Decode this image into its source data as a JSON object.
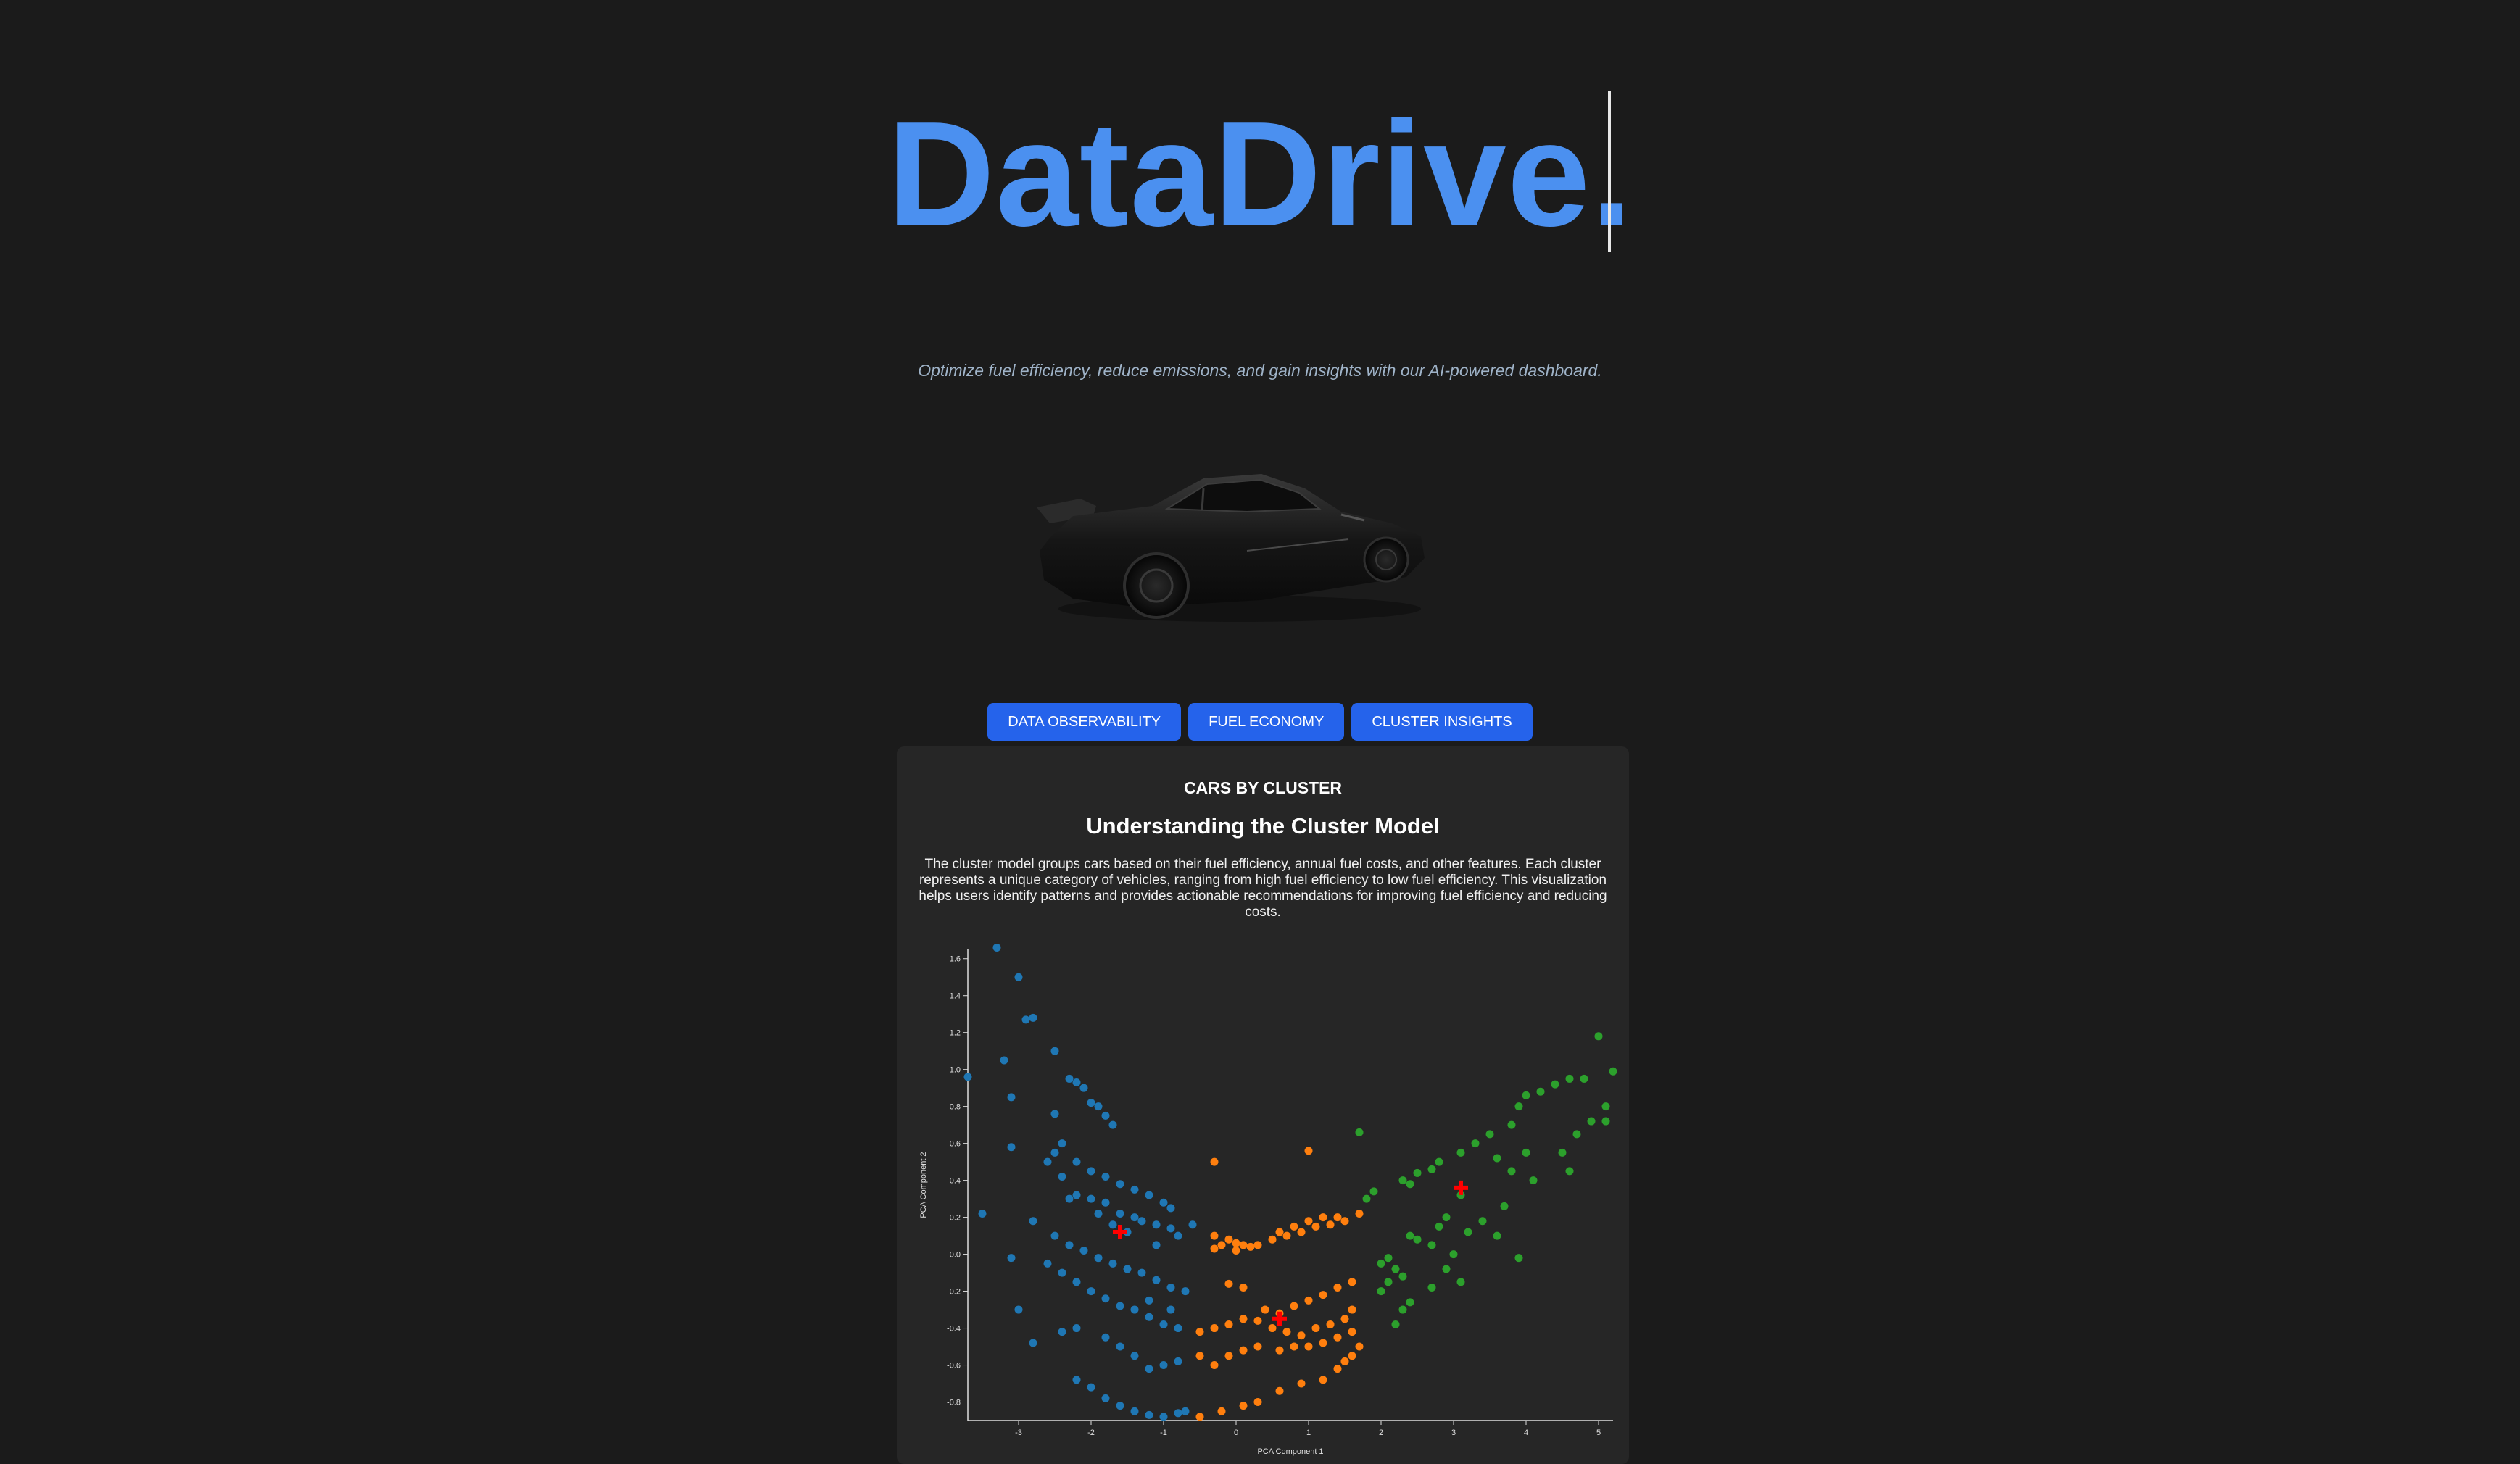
{
  "hero": {
    "title": "DataDrive.",
    "tagline": "Optimize fuel efficiency, reduce emissions, and gain insights with our AI-powered dashboard."
  },
  "nav": {
    "buttons": [
      {
        "label": "DATA OBSERVABILITY"
      },
      {
        "label": "FUEL ECONOMY"
      },
      {
        "label": "CLUSTER INSIGHTS"
      }
    ]
  },
  "panel": {
    "header": "CARS BY CLUSTER",
    "title": "Understanding the Cluster Model",
    "description": "The cluster model groups cars based on their fuel efficiency, annual fuel costs, and other features. Each cluster represents a unique category of vehicles, ranging from high fuel efficiency to low fuel efficiency. This visualization helps users identify patterns and provides actionable recommendations for improving fuel efficiency and reducing costs."
  },
  "colors": {
    "accent": "#4b90f0",
    "button": "#2563eb",
    "cluster_0": "#1f77b4",
    "cluster_1": "#ff7f0e",
    "cluster_2": "#2ca02c",
    "centroid": "#ff0000"
  },
  "chart_data": {
    "type": "scatter",
    "xlabel": "PCA Component 1",
    "ylabel": "PCA Component 2",
    "xlim": [
      -3.7,
      5.2
    ],
    "ylim": [
      -0.9,
      1.65
    ],
    "xticks": [
      -3,
      -2,
      -1,
      0,
      1,
      2,
      3,
      4,
      5
    ],
    "yticks": [
      -0.8,
      -0.6,
      -0.4,
      -0.2,
      0.0,
      0.2,
      0.4,
      0.6,
      0.8,
      1.0,
      1.2,
      1.4,
      1.6
    ],
    "series": [
      {
        "color": "#1f77b4",
        "points": [
          [
            -3.7,
            0.96
          ],
          [
            -3.3,
            1.66
          ],
          [
            -3.2,
            1.05
          ],
          [
            -3.0,
            1.5
          ],
          [
            -2.9,
            1.27
          ],
          [
            -2.8,
            1.28
          ],
          [
            -2.5,
            1.1
          ],
          [
            -2.3,
            0.95
          ],
          [
            -2.2,
            0.93
          ],
          [
            -2.1,
            0.9
          ],
          [
            -2.0,
            0.82
          ],
          [
            -1.9,
            0.8
          ],
          [
            -1.8,
            0.75
          ],
          [
            -1.7,
            0.7
          ],
          [
            -3.1,
            0.85
          ],
          [
            -2.5,
            0.76
          ],
          [
            -3.1,
            0.58
          ],
          [
            -2.5,
            0.55
          ],
          [
            -2.4,
            0.6
          ],
          [
            -2.2,
            0.5
          ],
          [
            -2.0,
            0.45
          ],
          [
            -1.8,
            0.42
          ],
          [
            -1.6,
            0.38
          ],
          [
            -1.4,
            0.35
          ],
          [
            -1.2,
            0.32
          ],
          [
            -1.0,
            0.28
          ],
          [
            -0.9,
            0.25
          ],
          [
            -2.6,
            0.5
          ],
          [
            -2.4,
            0.42
          ],
          [
            -2.2,
            0.32
          ],
          [
            -2.0,
            0.3
          ],
          [
            -1.8,
            0.28
          ],
          [
            -1.6,
            0.22
          ],
          [
            -1.4,
            0.2
          ],
          [
            -1.3,
            0.18
          ],
          [
            -1.1,
            0.16
          ],
          [
            -0.9,
            0.14
          ],
          [
            -0.8,
            0.1
          ],
          [
            -0.6,
            0.16
          ],
          [
            -3.5,
            0.22
          ],
          [
            -2.8,
            0.18
          ],
          [
            -2.5,
            0.1
          ],
          [
            -2.3,
            0.05
          ],
          [
            -2.1,
            0.02
          ],
          [
            -1.9,
            -0.02
          ],
          [
            -1.7,
            -0.05
          ],
          [
            -1.5,
            -0.08
          ],
          [
            -1.3,
            -0.1
          ],
          [
            -1.1,
            -0.14
          ],
          [
            -0.9,
            -0.18
          ],
          [
            -0.7,
            -0.2
          ],
          [
            -3.1,
            -0.02
          ],
          [
            -2.6,
            -0.05
          ],
          [
            -2.4,
            -0.1
          ],
          [
            -2.2,
            -0.15
          ],
          [
            -2.0,
            -0.2
          ],
          [
            -1.8,
            -0.24
          ],
          [
            -1.6,
            -0.28
          ],
          [
            -1.4,
            -0.3
          ],
          [
            -1.2,
            -0.34
          ],
          [
            -1.0,
            -0.38
          ],
          [
            -0.8,
            -0.4
          ],
          [
            -3.0,
            -0.3
          ],
          [
            -2.8,
            -0.48
          ],
          [
            -2.4,
            -0.42
          ],
          [
            -2.2,
            -0.4
          ],
          [
            -1.8,
            -0.45
          ],
          [
            -1.6,
            -0.5
          ],
          [
            -1.4,
            -0.55
          ],
          [
            -1.2,
            -0.62
          ],
          [
            -1.0,
            -0.6
          ],
          [
            -0.8,
            -0.58
          ],
          [
            -2.2,
            -0.68
          ],
          [
            -2.0,
            -0.72
          ],
          [
            -1.8,
            -0.78
          ],
          [
            -1.6,
            -0.82
          ],
          [
            -1.4,
            -0.85
          ],
          [
            -1.2,
            -0.87
          ],
          [
            -1.0,
            -0.88
          ],
          [
            -0.8,
            -0.86
          ],
          [
            -0.7,
            -0.85
          ],
          [
            -2.3,
            0.3
          ],
          [
            -1.9,
            0.22
          ],
          [
            -1.7,
            0.16
          ],
          [
            -1.5,
            0.12
          ],
          [
            -1.1,
            0.05
          ],
          [
            -1.2,
            -0.25
          ],
          [
            -0.9,
            -0.3
          ]
        ]
      },
      {
        "color": "#ff7f0e",
        "points": [
          [
            -0.3,
            0.5
          ],
          [
            1.0,
            0.56
          ],
          [
            -0.3,
            0.1
          ],
          [
            -0.2,
            0.05
          ],
          [
            -0.1,
            0.08
          ],
          [
            0.0,
            0.06
          ],
          [
            0.1,
            0.05
          ],
          [
            0.2,
            0.04
          ],
          [
            0.5,
            0.08
          ],
          [
            0.7,
            0.1
          ],
          [
            0.9,
            0.12
          ],
          [
            1.1,
            0.15
          ],
          [
            1.3,
            0.16
          ],
          [
            1.5,
            0.18
          ],
          [
            1.7,
            0.22
          ],
          [
            -0.3,
            0.03
          ],
          [
            0.0,
            0.02
          ],
          [
            0.3,
            0.05
          ],
          [
            0.6,
            0.12
          ],
          [
            0.8,
            0.15
          ],
          [
            1.0,
            0.18
          ],
          [
            1.2,
            0.2
          ],
          [
            1.4,
            0.2
          ],
          [
            -0.1,
            -0.16
          ],
          [
            0.1,
            -0.18
          ],
          [
            0.4,
            -0.3
          ],
          [
            0.6,
            -0.32
          ],
          [
            0.8,
            -0.28
          ],
          [
            1.0,
            -0.25
          ],
          [
            1.2,
            -0.22
          ],
          [
            1.4,
            -0.18
          ],
          [
            1.6,
            -0.15
          ],
          [
            -0.5,
            -0.42
          ],
          [
            -0.3,
            -0.4
          ],
          [
            -0.1,
            -0.38
          ],
          [
            0.1,
            -0.35
          ],
          [
            0.3,
            -0.36
          ],
          [
            0.5,
            -0.4
          ],
          [
            0.7,
            -0.42
          ],
          [
            0.9,
            -0.44
          ],
          [
            1.1,
            -0.4
          ],
          [
            1.3,
            -0.38
          ],
          [
            1.5,
            -0.35
          ],
          [
            1.6,
            -0.3
          ],
          [
            -0.5,
            -0.55
          ],
          [
            -0.3,
            -0.6
          ],
          [
            -0.1,
            -0.55
          ],
          [
            0.1,
            -0.52
          ],
          [
            0.3,
            -0.5
          ],
          [
            0.6,
            -0.52
          ],
          [
            0.8,
            -0.5
          ],
          [
            1.0,
            -0.5
          ],
          [
            1.2,
            -0.48
          ],
          [
            1.4,
            -0.45
          ],
          [
            1.6,
            -0.42
          ],
          [
            -0.5,
            -0.88
          ],
          [
            -0.2,
            -0.85
          ],
          [
            0.1,
            -0.82
          ],
          [
            0.3,
            -0.8
          ],
          [
            0.6,
            -0.74
          ],
          [
            0.9,
            -0.7
          ],
          [
            1.2,
            -0.68
          ],
          [
            1.4,
            -0.62
          ],
          [
            1.5,
            -0.58
          ],
          [
            1.6,
            -0.55
          ],
          [
            1.7,
            -0.5
          ]
        ]
      },
      {
        "color": "#2ca02c",
        "points": [
          [
            1.7,
            0.66
          ],
          [
            1.8,
            0.3
          ],
          [
            1.9,
            0.34
          ],
          [
            2.3,
            0.4
          ],
          [
            2.4,
            0.38
          ],
          [
            2.5,
            0.44
          ],
          [
            2.7,
            0.46
          ],
          [
            2.8,
            0.5
          ],
          [
            3.1,
            0.55
          ],
          [
            3.3,
            0.6
          ],
          [
            3.5,
            0.65
          ],
          [
            3.6,
            0.52
          ],
          [
            3.8,
            0.45
          ],
          [
            4.0,
            0.55
          ],
          [
            4.1,
            0.4
          ],
          [
            3.8,
            0.7
          ],
          [
            3.9,
            0.8
          ],
          [
            4.0,
            0.86
          ],
          [
            4.2,
            0.88
          ],
          [
            4.4,
            0.92
          ],
          [
            4.6,
            0.95
          ],
          [
            4.8,
            0.95
          ],
          [
            5.0,
            1.18
          ],
          [
            5.2,
            0.99
          ],
          [
            4.5,
            0.55
          ],
          [
            4.6,
            0.45
          ],
          [
            4.7,
            0.65
          ],
          [
            4.9,
            0.72
          ],
          [
            5.1,
            0.8
          ],
          [
            5.1,
            0.72
          ],
          [
            2.0,
            -0.05
          ],
          [
            2.1,
            -0.02
          ],
          [
            2.2,
            -0.08
          ],
          [
            2.3,
            -0.12
          ],
          [
            2.4,
            0.1
          ],
          [
            2.5,
            0.08
          ],
          [
            2.7,
            0.05
          ],
          [
            2.9,
            -0.08
          ],
          [
            3.0,
            0.0
          ],
          [
            3.1,
            -0.15
          ],
          [
            3.2,
            0.12
          ],
          [
            3.4,
            0.18
          ],
          [
            3.6,
            0.1
          ],
          [
            3.7,
            0.26
          ],
          [
            3.9,
            -0.02
          ],
          [
            2.2,
            -0.38
          ],
          [
            2.3,
            -0.3
          ],
          [
            2.4,
            -0.26
          ],
          [
            2.9,
            0.2
          ],
          [
            3.1,
            0.32
          ],
          [
            2.8,
            0.15
          ],
          [
            2.7,
            -0.18
          ],
          [
            2.0,
            -0.2
          ],
          [
            2.1,
            -0.15
          ]
        ]
      },
      {
        "color": "#ff0000",
        "centroid": true,
        "points": [
          [
            -1.6,
            0.12
          ],
          [
            0.6,
            -0.35
          ],
          [
            3.1,
            0.36
          ]
        ]
      }
    ]
  }
}
